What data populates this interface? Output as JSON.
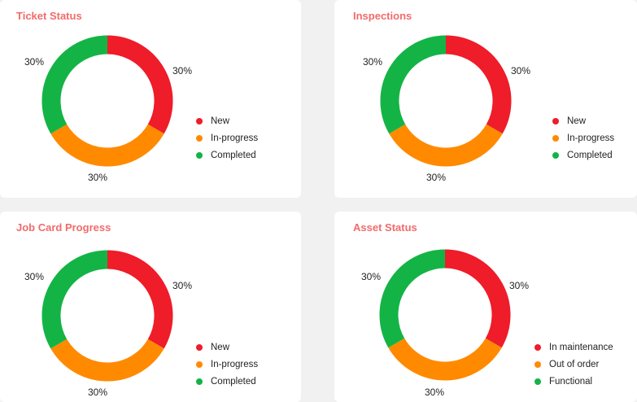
{
  "colors": {
    "red": "#ef1c29",
    "orange": "#ff8a00",
    "green": "#13b445"
  },
  "chart_data": [
    {
      "type": "pie",
      "title": "Ticket Status",
      "categories": [
        "New",
        "In-progress",
        "Completed"
      ],
      "values": [
        30,
        30,
        30
      ],
      "labels": [
        "30%",
        "30%",
        "30%"
      ],
      "colors": [
        "#ef1c29",
        "#ff8a00",
        "#13b445"
      ],
      "legend_position": "right"
    },
    {
      "type": "pie",
      "title": "Inspections",
      "categories": [
        "New",
        "In-progress",
        "Completed"
      ],
      "values": [
        30,
        30,
        30
      ],
      "labels": [
        "30%",
        "30%",
        "30%"
      ],
      "colors": [
        "#ef1c29",
        "#ff8a00",
        "#13b445"
      ],
      "legend_position": "right"
    },
    {
      "type": "pie",
      "title": "Job Card Progress",
      "categories": [
        "New",
        "In-progress",
        "Completed"
      ],
      "values": [
        30,
        30,
        30
      ],
      "labels": [
        "30%",
        "30%",
        "30%"
      ],
      "colors": [
        "#ef1c29",
        "#ff8a00",
        "#13b445"
      ],
      "legend_position": "right"
    },
    {
      "type": "pie",
      "title": "Asset Status",
      "categories": [
        "In maintenance",
        "Out of order",
        "Functional"
      ],
      "values": [
        30,
        30,
        30
      ],
      "labels": [
        "30%",
        "30%",
        "30%"
      ],
      "colors": [
        "#ef1c29",
        "#ff8a00",
        "#13b445"
      ],
      "legend_position": "right"
    }
  ]
}
